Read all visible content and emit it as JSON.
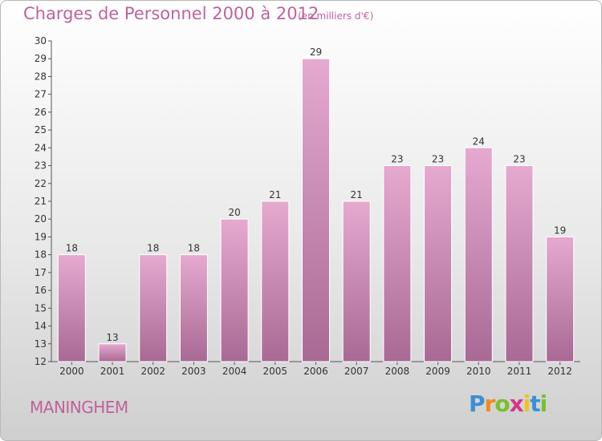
{
  "header": {
    "title": "Charges de Personnel 2000 à 2012",
    "subtitle": "(en milliers d'€)"
  },
  "footer": {
    "city": "MANINGHEM",
    "logo_letters": [
      "P",
      "r",
      "o",
      "x",
      "i",
      "t",
      "i"
    ],
    "logo_colors": [
      "#3b8fd8",
      "#f08a1c",
      "#7bbf2a",
      "#d8348a",
      "#f2c21b",
      "#3b8fd8",
      "#7bbf2a"
    ]
  },
  "colors": {
    "bar_top": "#e6a9d0",
    "bar_bottom": "#a86a94",
    "bar_stroke": "#ffffff",
    "title": "#c0629a"
  },
  "chart_data": {
    "type": "bar",
    "categories": [
      "2000",
      "2001",
      "2002",
      "2003",
      "2004",
      "2005",
      "2006",
      "2007",
      "2008",
      "2009",
      "2010",
      "2011",
      "2012"
    ],
    "values": [
      18,
      13,
      18,
      18,
      20,
      21,
      29,
      21,
      23,
      23,
      24,
      23,
      19
    ],
    "data_labels": [
      "18",
      "13",
      "18",
      "18",
      "20",
      "21",
      "29",
      "21",
      "23",
      "23",
      "24",
      "23",
      "19"
    ],
    "ylim": [
      12,
      30
    ],
    "yticks": [
      12,
      13,
      14,
      15,
      16,
      17,
      18,
      19,
      20,
      21,
      22,
      23,
      24,
      25,
      26,
      27,
      28,
      29,
      30
    ],
    "grid": false,
    "legend": "none"
  }
}
